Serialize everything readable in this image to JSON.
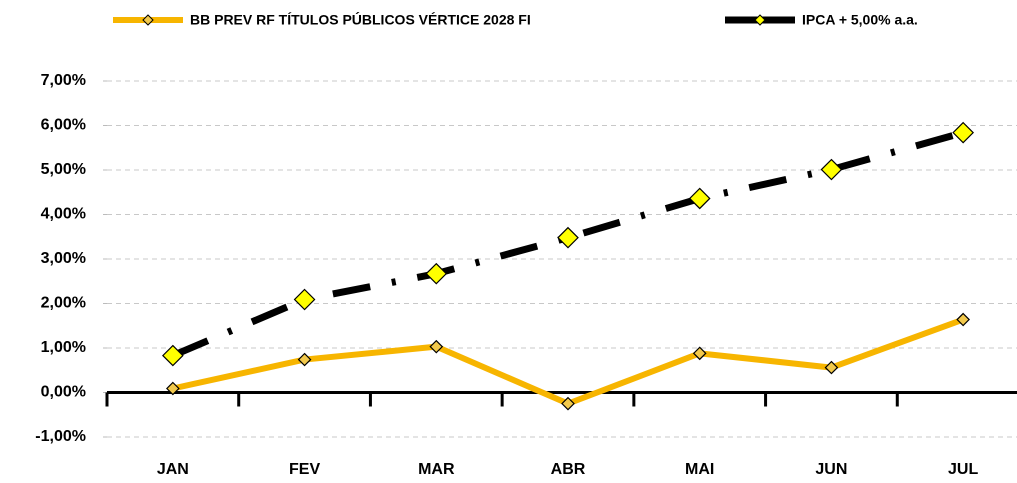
{
  "chart_data": {
    "type": "line",
    "categories": [
      "JAN",
      "FEV",
      "MAR",
      "ABR",
      "MAI",
      "JUN",
      "JUL"
    ],
    "series": [
      {
        "name": "BB PREV RF TÍTULOS PÚBLICOS VÉRTICE 2028 FI",
        "color": "#f7b500",
        "values": [
          0.09,
          0.74,
          1.03,
          -0.25,
          0.88,
          0.56,
          1.64
        ]
      },
      {
        "name": "IPCA + 5,00% a.a.",
        "color": "#000000",
        "values": [
          0.83,
          2.09,
          2.67,
          3.48,
          4.36,
          5.01,
          5.84
        ]
      }
    ],
    "ylim": [
      -1,
      7
    ],
    "yticks": [
      {
        "value": -1,
        "label": "-1,00%"
      },
      {
        "value": 0,
        "label": "0,00%"
      },
      {
        "value": 1,
        "label": "1,00%"
      },
      {
        "value": 2,
        "label": "2,00%"
      },
      {
        "value": 3,
        "label": "3,00%"
      },
      {
        "value": 4,
        "label": "4,00%"
      },
      {
        "value": 5,
        "label": "5,00%"
      },
      {
        "value": 6,
        "label": "6,00%"
      },
      {
        "value": 7,
        "label": "7,00%"
      }
    ],
    "grid": true,
    "legend": "top"
  }
}
